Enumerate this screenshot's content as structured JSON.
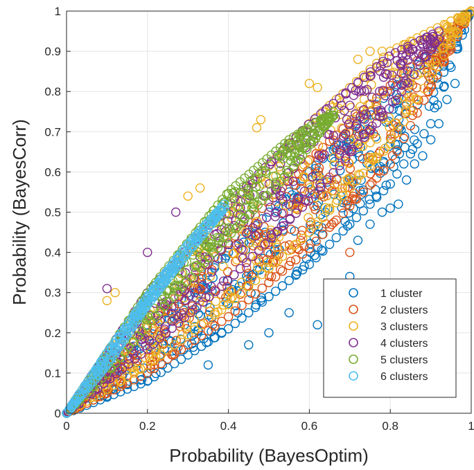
{
  "chart_data": {
    "type": "scatter",
    "title": "",
    "xlabel": "Probability (BayesOptim)",
    "ylabel": "Probability (BayesCorr)",
    "xlim": [
      0,
      1
    ],
    "ylim": [
      0,
      1
    ],
    "grid": true,
    "legend_position": "bottom-right",
    "x_ticks": [
      "0",
      "0.2",
      "0.4",
      "0.6",
      "0.8",
      "1"
    ],
    "y_ticks": [
      "0",
      "0.1",
      "0.2",
      "0.3",
      "0.4",
      "0.5",
      "0.6",
      "0.7",
      "0.8",
      "0.9",
      "1"
    ],
    "marker": "open-circle",
    "series": [
      {
        "name": "1 cluster",
        "color": "#0072BD",
        "x_max": 1.0,
        "lower_edge": [
          [
            0,
            0
          ],
          [
            0.2,
            0.08
          ],
          [
            0.4,
            0.21
          ],
          [
            0.6,
            0.37
          ],
          [
            0.8,
            0.57
          ],
          [
            0.9,
            0.72
          ],
          [
            1.0,
            1.0
          ]
        ],
        "upper_edge": [
          [
            0,
            0
          ],
          [
            0.5,
            0.5
          ],
          [
            1.0,
            1.0
          ]
        ],
        "outliers": [
          [
            0.62,
            0.22
          ],
          [
            0.66,
            0.3
          ],
          [
            0.7,
            0.34
          ],
          [
            0.72,
            0.43
          ],
          [
            0.75,
            0.47
          ],
          [
            0.78,
            0.5
          ],
          [
            0.8,
            0.51
          ],
          [
            0.82,
            0.52
          ],
          [
            0.84,
            0.58
          ],
          [
            0.86,
            0.62
          ],
          [
            0.88,
            0.64
          ],
          [
            0.9,
            0.68
          ],
          [
            0.92,
            0.72
          ],
          [
            0.94,
            0.78
          ],
          [
            0.96,
            0.82
          ],
          [
            0.5,
            0.2
          ],
          [
            0.55,
            0.25
          ],
          [
            0.35,
            0.12
          ],
          [
            0.45,
            0.17
          ]
        ]
      },
      {
        "name": "2 clusters",
        "color": "#D95319",
        "x_max": 1.0,
        "lower_edge": [
          [
            0,
            0
          ],
          [
            0.2,
            0.1
          ],
          [
            0.4,
            0.24
          ],
          [
            0.6,
            0.41
          ],
          [
            0.8,
            0.62
          ],
          [
            1.0,
            1.0
          ]
        ],
        "upper_edge": [
          [
            0,
            0
          ],
          [
            0.3,
            0.32
          ],
          [
            0.6,
            0.63
          ],
          [
            1.0,
            1.0
          ]
        ],
        "outliers": [
          [
            0.7,
            0.4
          ]
        ]
      },
      {
        "name": "3 clusters",
        "color": "#EDB120",
        "x_max": 1.0,
        "lower_edge": [
          [
            0,
            0
          ],
          [
            0.2,
            0.12
          ],
          [
            0.4,
            0.27
          ],
          [
            0.6,
            0.45
          ],
          [
            0.8,
            0.67
          ],
          [
            1.0,
            1.0
          ]
        ],
        "upper_edge": [
          [
            0,
            0
          ],
          [
            0.2,
            0.29
          ],
          [
            0.4,
            0.51
          ],
          [
            0.6,
            0.72
          ],
          [
            0.8,
            0.9
          ],
          [
            1.0,
            1.0
          ]
        ],
        "outliers": [
          [
            0.1,
            0.28
          ],
          [
            0.12,
            0.3
          ],
          [
            0.3,
            0.54
          ],
          [
            0.33,
            0.56
          ],
          [
            0.47,
            0.71
          ],
          [
            0.48,
            0.73
          ],
          [
            0.6,
            0.82
          ],
          [
            0.62,
            0.81
          ],
          [
            0.72,
            0.88
          ],
          [
            0.75,
            0.9
          ],
          [
            0.78,
            0.9
          ]
        ]
      },
      {
        "name": "4 clusters",
        "color": "#7E2F8E",
        "x_max": 0.92,
        "lower_edge": [
          [
            0,
            0
          ],
          [
            0.2,
            0.16
          ],
          [
            0.4,
            0.33
          ],
          [
            0.6,
            0.53
          ],
          [
            0.8,
            0.76
          ],
          [
            0.92,
            0.93
          ]
        ],
        "upper_edge": [
          [
            0,
            0
          ],
          [
            0.2,
            0.3
          ],
          [
            0.4,
            0.52
          ],
          [
            0.6,
            0.72
          ],
          [
            0.8,
            0.89
          ],
          [
            0.92,
            0.95
          ]
        ],
        "outliers": [
          [
            0.1,
            0.31
          ],
          [
            0.2,
            0.4
          ],
          [
            0.27,
            0.5
          ]
        ]
      },
      {
        "name": "5 clusters",
        "color": "#77AC30",
        "x_max": 0.66,
        "lower_edge": [
          [
            0,
            0
          ],
          [
            0.1,
            0.1
          ],
          [
            0.2,
            0.22
          ],
          [
            0.4,
            0.44
          ],
          [
            0.55,
            0.6
          ],
          [
            0.66,
            0.74
          ]
        ],
        "upper_edge": [
          [
            0,
            0
          ],
          [
            0.1,
            0.15
          ],
          [
            0.2,
            0.3
          ],
          [
            0.4,
            0.55
          ],
          [
            0.55,
            0.68
          ],
          [
            0.66,
            0.75
          ]
        ],
        "outliers": []
      },
      {
        "name": "6 clusters",
        "color": "#4DBEEE",
        "x_max": 0.39,
        "lower_edge": [
          [
            0,
            0
          ],
          [
            0.1,
            0.12
          ],
          [
            0.2,
            0.27
          ],
          [
            0.3,
            0.4
          ],
          [
            0.39,
            0.51
          ]
        ],
        "upper_edge": [
          [
            0,
            0
          ],
          [
            0.1,
            0.15
          ],
          [
            0.2,
            0.29
          ],
          [
            0.3,
            0.42
          ],
          [
            0.39,
            0.52
          ]
        ],
        "outliers": []
      }
    ]
  }
}
